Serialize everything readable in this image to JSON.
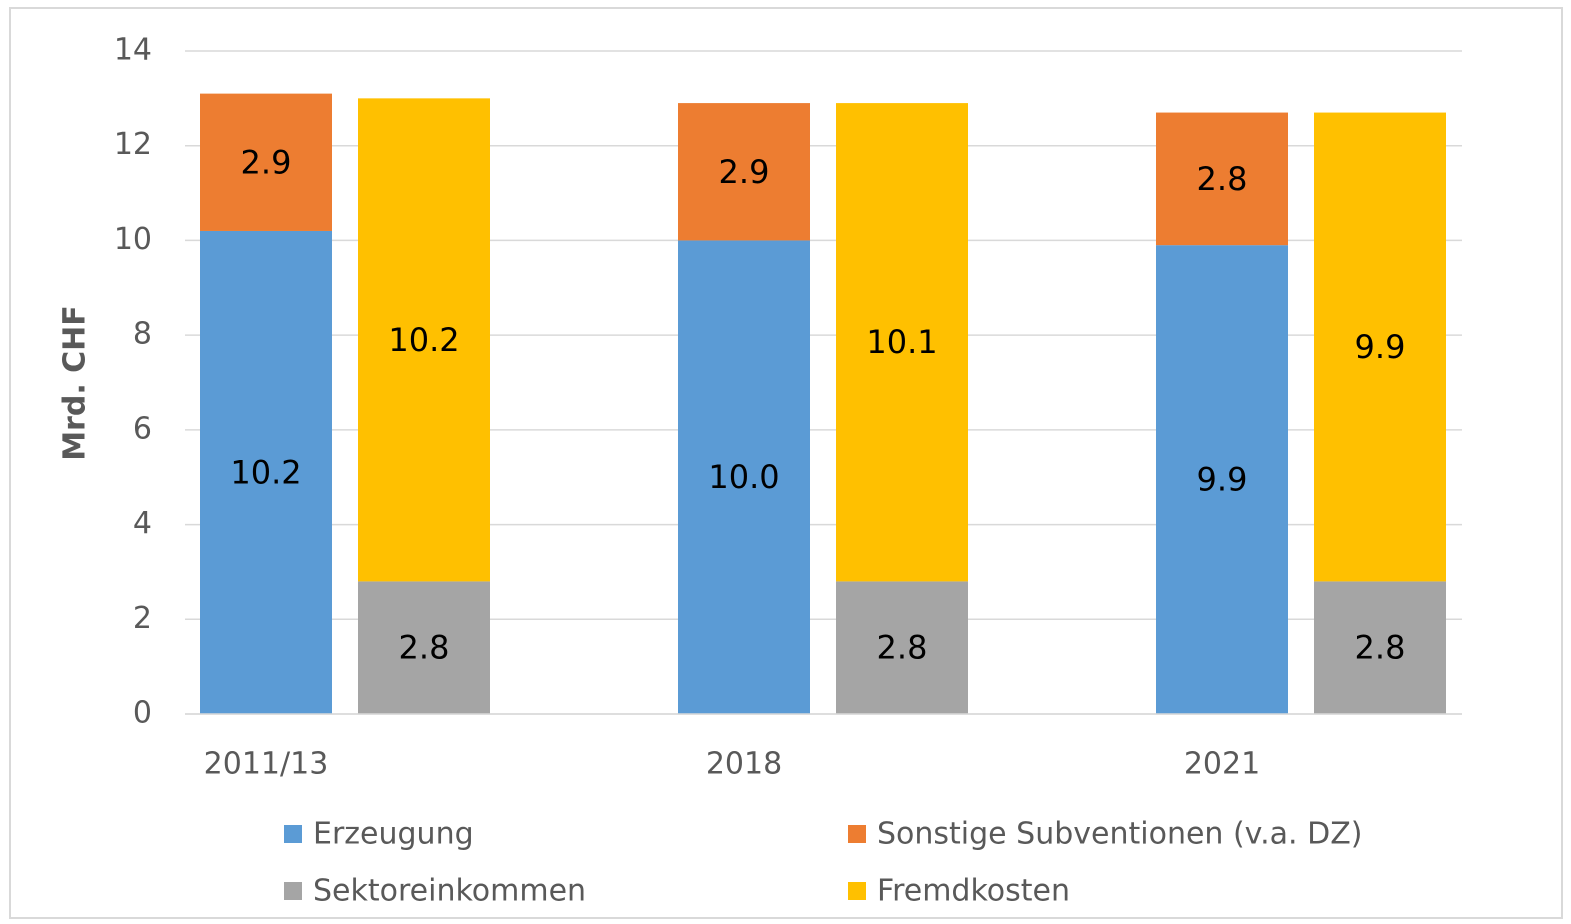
{
  "chart_data": {
    "type": "bar",
    "stacked": true,
    "y_axis_label": "Mrd. CHF",
    "categories": [
      "2011/13",
      "2018",
      "2021"
    ],
    "series": [
      {
        "name": "Erzeugung",
        "color": "#5b9bd5",
        "stack": 0,
        "values": [
          10.2,
          10.0,
          9.9
        ],
        "value_labels": [
          "10.2",
          "10.0",
          "9.9"
        ]
      },
      {
        "name": "Sonstige Subventionen (v.a. DZ)",
        "color": "#ed7d31",
        "stack": 0,
        "values": [
          2.9,
          2.9,
          2.8
        ]
      },
      {
        "name": "Sektoreinkommen",
        "color": "#a5a5a5",
        "stack": 1,
        "values": [
          2.8,
          2.8,
          2.8
        ]
      },
      {
        "name": "Fremdkosten",
        "color": "#ffc000",
        "stack": 1,
        "values": [
          10.2,
          10.1,
          9.9
        ]
      }
    ],
    "ylim": [
      0,
      14
    ],
    "yticks": [
      0,
      2,
      4,
      6,
      8,
      10,
      12,
      14
    ],
    "grid": true,
    "legend": "bottom"
  }
}
